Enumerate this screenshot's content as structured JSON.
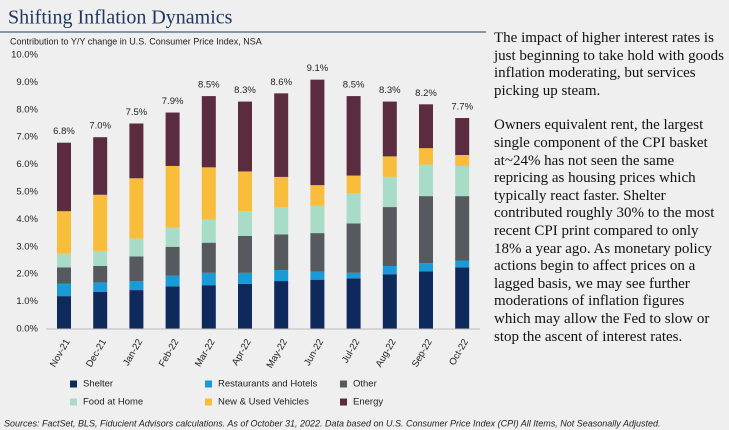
{
  "chart_data": {
    "type": "stacked-bar",
    "title": "Shifting Inflation Dynamics",
    "subtitle": "Contribution to Y/Y change in U.S. Consumer Price Index, NSA",
    "categories": [
      "Nov-21",
      "Dec-21",
      "Jan-22",
      "Feb-22",
      "Mar-22",
      "Apr-22",
      "May-22",
      "Jun-22",
      "Jul-22",
      "Aug-22",
      "Sep-22",
      "Oct-22"
    ],
    "series": [
      {
        "name": "Shelter",
        "color": "#0e2a5c",
        "values": [
          1.2,
          1.35,
          1.42,
          1.55,
          1.6,
          1.65,
          1.75,
          1.8,
          1.85,
          2.0,
          2.1,
          2.25
        ]
      },
      {
        "name": "Restaurants and Hotels",
        "color": "#1a9ad6",
        "values": [
          0.45,
          0.35,
          0.33,
          0.4,
          0.45,
          0.4,
          0.4,
          0.3,
          0.2,
          0.3,
          0.3,
          0.25
        ]
      },
      {
        "name": "Other",
        "color": "#56595e",
        "values": [
          0.6,
          0.6,
          0.9,
          1.05,
          1.1,
          1.35,
          1.3,
          1.4,
          1.8,
          2.15,
          2.45,
          2.35
        ]
      },
      {
        "name": "Food at Home",
        "color": "#a9dcc8",
        "values": [
          0.5,
          0.55,
          0.65,
          0.7,
          0.85,
          0.9,
          1.0,
          1.0,
          1.1,
          1.1,
          1.15,
          1.1
        ]
      },
      {
        "name": "New & Used Vehicles",
        "color": "#f8bd3b",
        "values": [
          1.55,
          2.05,
          2.2,
          2.25,
          1.9,
          1.45,
          1.1,
          0.75,
          0.65,
          0.75,
          0.6,
          0.4
        ]
      },
      {
        "name": "Energy",
        "color": "#5b2b40",
        "values": [
          2.5,
          2.1,
          2.0,
          1.95,
          2.6,
          2.55,
          3.05,
          3.85,
          2.9,
          2.0,
          1.6,
          1.35
        ]
      }
    ],
    "totals": {
      "values": [
        6.8,
        7.0,
        7.5,
        7.9,
        8.5,
        8.3,
        8.6,
        9.1,
        8.5,
        8.3,
        8.2,
        7.7
      ],
      "value_labels": [
        "6.8%",
        "7.0%",
        "7.5%",
        "7.9%",
        "8.5%",
        "8.3%",
        "8.6%",
        "9.1%",
        "8.5%",
        "8.3%",
        "8.2%",
        "7.7%"
      ]
    },
    "ylim": [
      0,
      10
    ],
    "yticks": [
      {
        "value": 0,
        "label": "0.0%"
      },
      {
        "value": 1,
        "label": "1.0%"
      },
      {
        "value": 2,
        "label": "2.0%"
      },
      {
        "value": 3,
        "label": "3.0%"
      },
      {
        "value": 4,
        "label": "4.0%"
      },
      {
        "value": 5,
        "label": "5.0%"
      },
      {
        "value": 6,
        "label": "6.0%"
      },
      {
        "value": 7,
        "label": "7.0%"
      },
      {
        "value": 8,
        "label": "8.0%"
      },
      {
        "value": 9,
        "label": "9.0%"
      },
      {
        "value": 10,
        "label": "10.0%"
      }
    ],
    "grid": false
  },
  "text": {
    "paragraphs": [
      "The impact of higher interest rates is just beginning to take hold with goods inflation moderating, but services picking up steam.",
      "Owners equivalent rent, the largest single component of the CPI basket at~24% has not seen the same repricing as housing prices which typically react faster. Shelter contributed roughly 30% to the most recent CPI print compared to only 18% a year ago. As monetary policy actions begin to affect prices on a lagged basis, we may see further moderations of inflation figures which may allow the Fed to slow or stop the ascent of interest rates."
    ]
  },
  "footnote": "Sources: FactSet, BLS, Fiducient Advisors calculations. As of October 31, 2022. Data based on U.S. Consumer Price Index (CPI) All Items, Not Seasonally Adjusted."
}
